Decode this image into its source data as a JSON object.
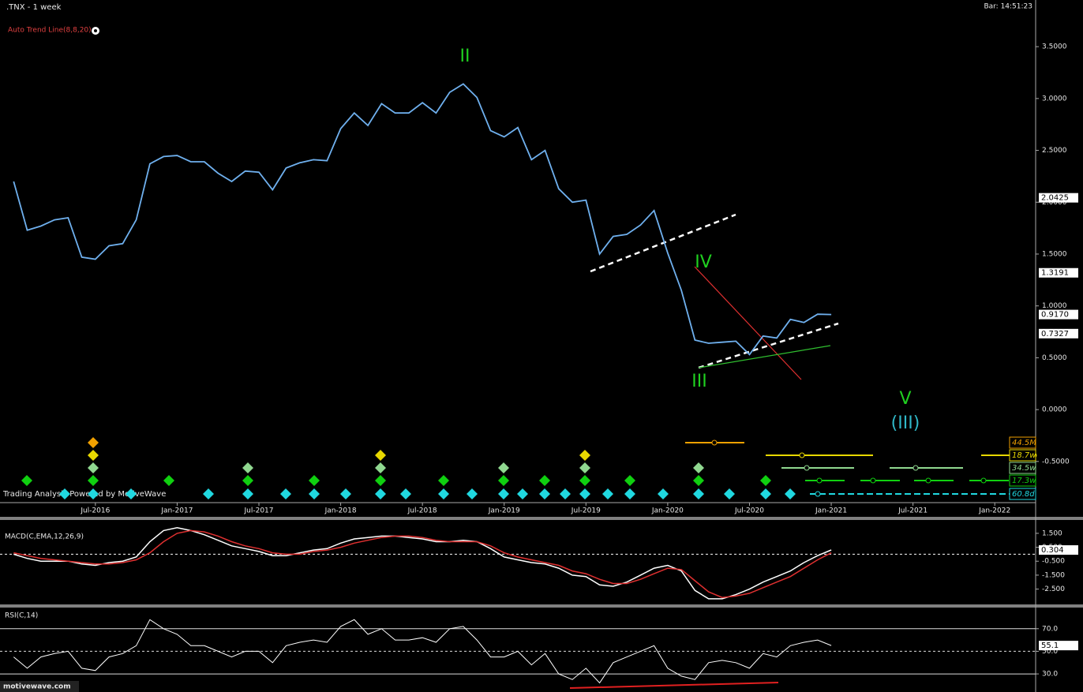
{
  "chart_data": [
    {
      "type": "line",
      "title": ".TNX - 1 week",
      "subtitle": "Auto Trend Line(8,8,20)",
      "bar_time": "Bar: 14:51:23",
      "footer": "Trading Analysis Powered by MotiveWave",
      "x": [
        "Jan-2016",
        "Feb-2016",
        "Mar-2016",
        "Apr-2016",
        "May-2016",
        "Jun-2016",
        "Jul-2016",
        "Aug-2016",
        "Sep-2016",
        "Oct-2016",
        "Nov-2016",
        "Dec-2016",
        "Jan-2017",
        "Feb-2017",
        "Mar-2017",
        "Apr-2017",
        "May-2017",
        "Jun-2017",
        "Jul-2017",
        "Aug-2017",
        "Sep-2017",
        "Oct-2017",
        "Nov-2017",
        "Dec-2017",
        "Jan-2018",
        "Feb-2018",
        "Mar-2018",
        "Apr-2018",
        "May-2018",
        "Jun-2018",
        "Jul-2018",
        "Aug-2018",
        "Sep-2018",
        "Oct-2018",
        "Nov-2018",
        "Dec-2018",
        "Jan-2019",
        "Feb-2019",
        "Mar-2019",
        "Apr-2019",
        "May-2019",
        "Jun-2019",
        "Jul-2019",
        "Aug-2019",
        "Sep-2019",
        "Oct-2019",
        "Nov-2019",
        "Dec-2019",
        "Jan-2020",
        "Feb-2020",
        "Mar-2020",
        "Apr-2020",
        "May-2020",
        "Jun-2020",
        "Jul-2020",
        "Aug-2020",
        "Sep-2020",
        "Oct-2020",
        "Nov-2020",
        "Dec-2020",
        "Jan-2021"
      ],
      "values": [
        2.2,
        1.73,
        1.77,
        1.83,
        1.85,
        1.47,
        1.45,
        1.58,
        1.6,
        1.83,
        2.37,
        2.44,
        2.45,
        2.39,
        2.39,
        2.28,
        2.2,
        2.3,
        2.29,
        2.12,
        2.33,
        2.38,
        2.41,
        2.4,
        2.71,
        2.86,
        2.74,
        2.95,
        2.86,
        2.86,
        2.96,
        2.86,
        3.06,
        3.14,
        3.01,
        2.69,
        2.63,
        2.72,
        2.41,
        2.5,
        2.13,
        2.0,
        2.02,
        1.5,
        1.67,
        1.69,
        1.78,
        1.92,
        1.51,
        1.15,
        0.67,
        0.64,
        0.65,
        0.66,
        0.53,
        0.71,
        0.69,
        0.87,
        0.84,
        0.92,
        0.917
      ],
      "color": "#6fb0ee",
      "xlim": [
        "Dec-2015",
        "Apr-2022"
      ],
      "xticks": [
        "Jul-2016",
        "Jan-2017",
        "Jul-2017",
        "Jan-2018",
        "Jul-2018",
        "Jan-2019",
        "Jul-2019",
        "Jan-2020",
        "Jul-2020",
        "Jan-2021",
        "Jul-2021",
        "Jan-2022"
      ],
      "ylim": [
        -0.92,
        3.95
      ],
      "yticks": [
        {
          "value": 3.5,
          "label": "3.5000"
        },
        {
          "value": 3.0,
          "label": "3.0000"
        },
        {
          "value": 2.5,
          "label": "2.5000"
        },
        {
          "value": 2.0,
          "label": "2.0000"
        },
        {
          "value": 1.5,
          "label": "1.5000"
        },
        {
          "value": 1.0,
          "label": "1.0000"
        },
        {
          "value": 0.5,
          "label": "0.5000"
        },
        {
          "value": 0.0,
          "label": "0.0000"
        },
        {
          "value": -0.5,
          "label": "-0.5000"
        }
      ],
      "price_labels": [
        2.0425,
        1.3191,
        {
          "value": 0.917,
          "label": "0.9170"
        },
        0.7327
      ],
      "wave_labels": [
        "II",
        "IV",
        "III",
        "V",
        "(III)"
      ],
      "cycle_labels": [
        {
          "label": "44.5M",
          "color": "#f0a000"
        },
        {
          "label": "18.7w",
          "color": "#e8d800"
        },
        {
          "label": "34.5w",
          "color": "#90d890"
        },
        {
          "label": "17.3w",
          "color": "#10d010"
        },
        {
          "label": "60.8d",
          "color": "#20d8e0"
        }
      ]
    },
    {
      "type": "line",
      "title": "MACD(C,EMA,12,26,9)",
      "series": [
        {
          "color": "#ffffff",
          "values": [
            0.0,
            -0.3,
            -0.5,
            -0.5,
            -0.5,
            -0.7,
            -0.8,
            -0.6,
            -0.5,
            -0.2,
            0.9,
            1.7,
            1.9,
            1.7,
            1.4,
            1.0,
            0.6,
            0.4,
            0.2,
            -0.1,
            -0.1,
            0.1,
            0.3,
            0.4,
            0.8,
            1.1,
            1.2,
            1.3,
            1.3,
            1.2,
            1.1,
            0.9,
            0.9,
            1.0,
            0.9,
            0.4,
            -0.2,
            -0.4,
            -0.6,
            -0.7,
            -1.0,
            -1.5,
            -1.6,
            -2.2,
            -2.3,
            -2.0,
            -1.5,
            -1.0,
            -0.8,
            -1.2,
            -2.6,
            -3.2,
            -3.2,
            -2.9,
            -2.5,
            -2.0,
            -1.6,
            -1.2,
            -0.6,
            -0.1,
            0.304
          ]
        },
        {
          "color": "#e03030",
          "values": [
            0.1,
            -0.1,
            -0.3,
            -0.4,
            -0.5,
            -0.6,
            -0.7,
            -0.7,
            -0.6,
            -0.4,
            0.1,
            0.9,
            1.5,
            1.7,
            1.6,
            1.3,
            0.9,
            0.6,
            0.4,
            0.1,
            0.0,
            0.0,
            0.2,
            0.3,
            0.5,
            0.8,
            1.0,
            1.2,
            1.3,
            1.3,
            1.2,
            1.0,
            0.9,
            0.9,
            0.9,
            0.6,
            0.1,
            -0.2,
            -0.4,
            -0.6,
            -0.8,
            -1.2,
            -1.4,
            -1.8,
            -2.1,
            -2.1,
            -1.8,
            -1.4,
            -1.0,
            -1.1,
            -1.9,
            -2.7,
            -3.1,
            -3.0,
            -2.8,
            -2.4,
            -2.0,
            -1.6,
            -1.0,
            -0.4,
            0.1
          ]
        }
      ],
      "ylim": [
        -3.6,
        2.4
      ],
      "yticks": [
        {
          "value": 1.5,
          "label": "1.500"
        },
        {
          "value": 0.5,
          "label": "0.500"
        },
        {
          "value": -0.5,
          "label": "-0.500"
        },
        {
          "value": -1.5,
          "label": "-1.500"
        },
        {
          "value": -2.5,
          "label": "-2.500"
        }
      ],
      "current_value": 0.304
    },
    {
      "type": "line",
      "title": "RSI(C,14)",
      "values": [
        45,
        35,
        45,
        48,
        50,
        35,
        33,
        45,
        48,
        55,
        78,
        70,
        65,
        55,
        55,
        50,
        45,
        50,
        50,
        40,
        55,
        58,
        60,
        58,
        72,
        78,
        65,
        70,
        60,
        60,
        62,
        58,
        70,
        72,
        60,
        45,
        45,
        50,
        38,
        48,
        30,
        25,
        35,
        22,
        40,
        45,
        50,
        55,
        35,
        28,
        25,
        40,
        42,
        40,
        35,
        48,
        45,
        55,
        58,
        60,
        55.1
      ],
      "color": "#ffffff",
      "ylim": [
        14,
        88
      ],
      "yticks": [
        {
          "value": 70,
          "label": "70.0"
        },
        {
          "value": 50,
          "label": "50.0"
        },
        {
          "value": 30,
          "label": "30.0"
        }
      ],
      "current_value": 55.1
    }
  ],
  "logo": "motivewave.com"
}
